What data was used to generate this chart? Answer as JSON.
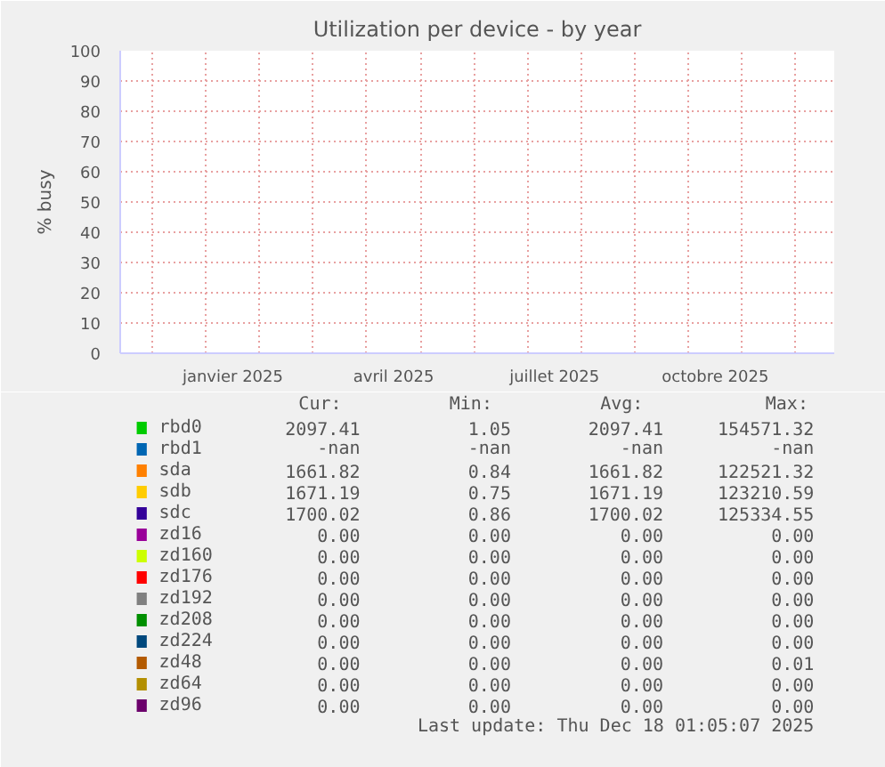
{
  "chart_data": {
    "type": "line",
    "title": "Utilization per device - by year",
    "ylabel": "% busy",
    "categories": [
      "janvier 2025",
      "avril 2025",
      "juillet 2025",
      "octobre 2025"
    ],
    "ylim": [
      0,
      100
    ],
    "yticks": [
      0,
      10,
      20,
      30,
      40,
      50,
      60,
      70,
      80,
      90,
      100
    ],
    "grid": true,
    "legend": "bottom",
    "series": [
      {
        "name": "rbd0",
        "color": "#00cc00",
        "values": [
          null,
          null,
          null,
          null
        ]
      },
      {
        "name": "rbd1",
        "color": "#0066b3",
        "values": [
          null,
          null,
          null,
          null
        ]
      },
      {
        "name": "sda",
        "color": "#ff8000",
        "values": [
          null,
          null,
          null,
          null
        ]
      },
      {
        "name": "sdb",
        "color": "#ffcc00",
        "values": [
          null,
          null,
          null,
          null
        ]
      },
      {
        "name": "sdc",
        "color": "#330099",
        "values": [
          null,
          null,
          null,
          null
        ]
      },
      {
        "name": "zd16",
        "color": "#990099",
        "values": [
          null,
          null,
          null,
          null
        ]
      },
      {
        "name": "zd160",
        "color": "#ccff00",
        "values": [
          null,
          null,
          null,
          null
        ]
      },
      {
        "name": "zd176",
        "color": "#ff0000",
        "values": [
          null,
          null,
          null,
          null
        ]
      },
      {
        "name": "zd192",
        "color": "#808080",
        "values": [
          null,
          null,
          null,
          null
        ]
      },
      {
        "name": "zd208",
        "color": "#008f00",
        "values": [
          null,
          null,
          null,
          null
        ]
      },
      {
        "name": "zd224",
        "color": "#00487d",
        "values": [
          null,
          null,
          null,
          null
        ]
      },
      {
        "name": "zd48",
        "color": "#b35a00",
        "values": [
          null,
          null,
          null,
          null
        ]
      },
      {
        "name": "zd64",
        "color": "#b38f00",
        "values": [
          null,
          null,
          null,
          null
        ]
      },
      {
        "name": "zd96",
        "color": "#6b006b",
        "values": [
          null,
          null,
          null,
          null
        ]
      }
    ],
    "annotations": [
      "Cur:",
      "Min:",
      "Avg:",
      "Max:",
      "2097.41",
      "1.05",
      "2097.41",
      "154571.32",
      "-nan",
      "-nan",
      "-nan",
      "-nan",
      "1661.82",
      "0.84",
      "1661.82",
      "122521.32",
      "1671.19",
      "0.75",
      "1671.19",
      "123210.59",
      "1700.02",
      "0.86",
      "1700.02",
      "125334.55",
      "0.00",
      "0.00",
      "0.00",
      "0.00",
      "0.00",
      "0.00",
      "0.00",
      "0.00",
      "0.00",
      "0.00",
      "0.00",
      "0.00",
      "0.00",
      "0.00",
      "0.00",
      "0.00",
      "0.00",
      "0.00",
      "0.00",
      "0.00",
      "0.00",
      "0.00",
      "0.00",
      "0.00",
      "0.00",
      "0.00",
      "0.00",
      "0.01",
      "0.00",
      "0.00",
      "0.00",
      "0.00",
      "0.00",
      "0.00",
      "0.00",
      "0.00",
      "Last update: Thu Dec 18 01:05:07 2025"
    ]
  }
}
